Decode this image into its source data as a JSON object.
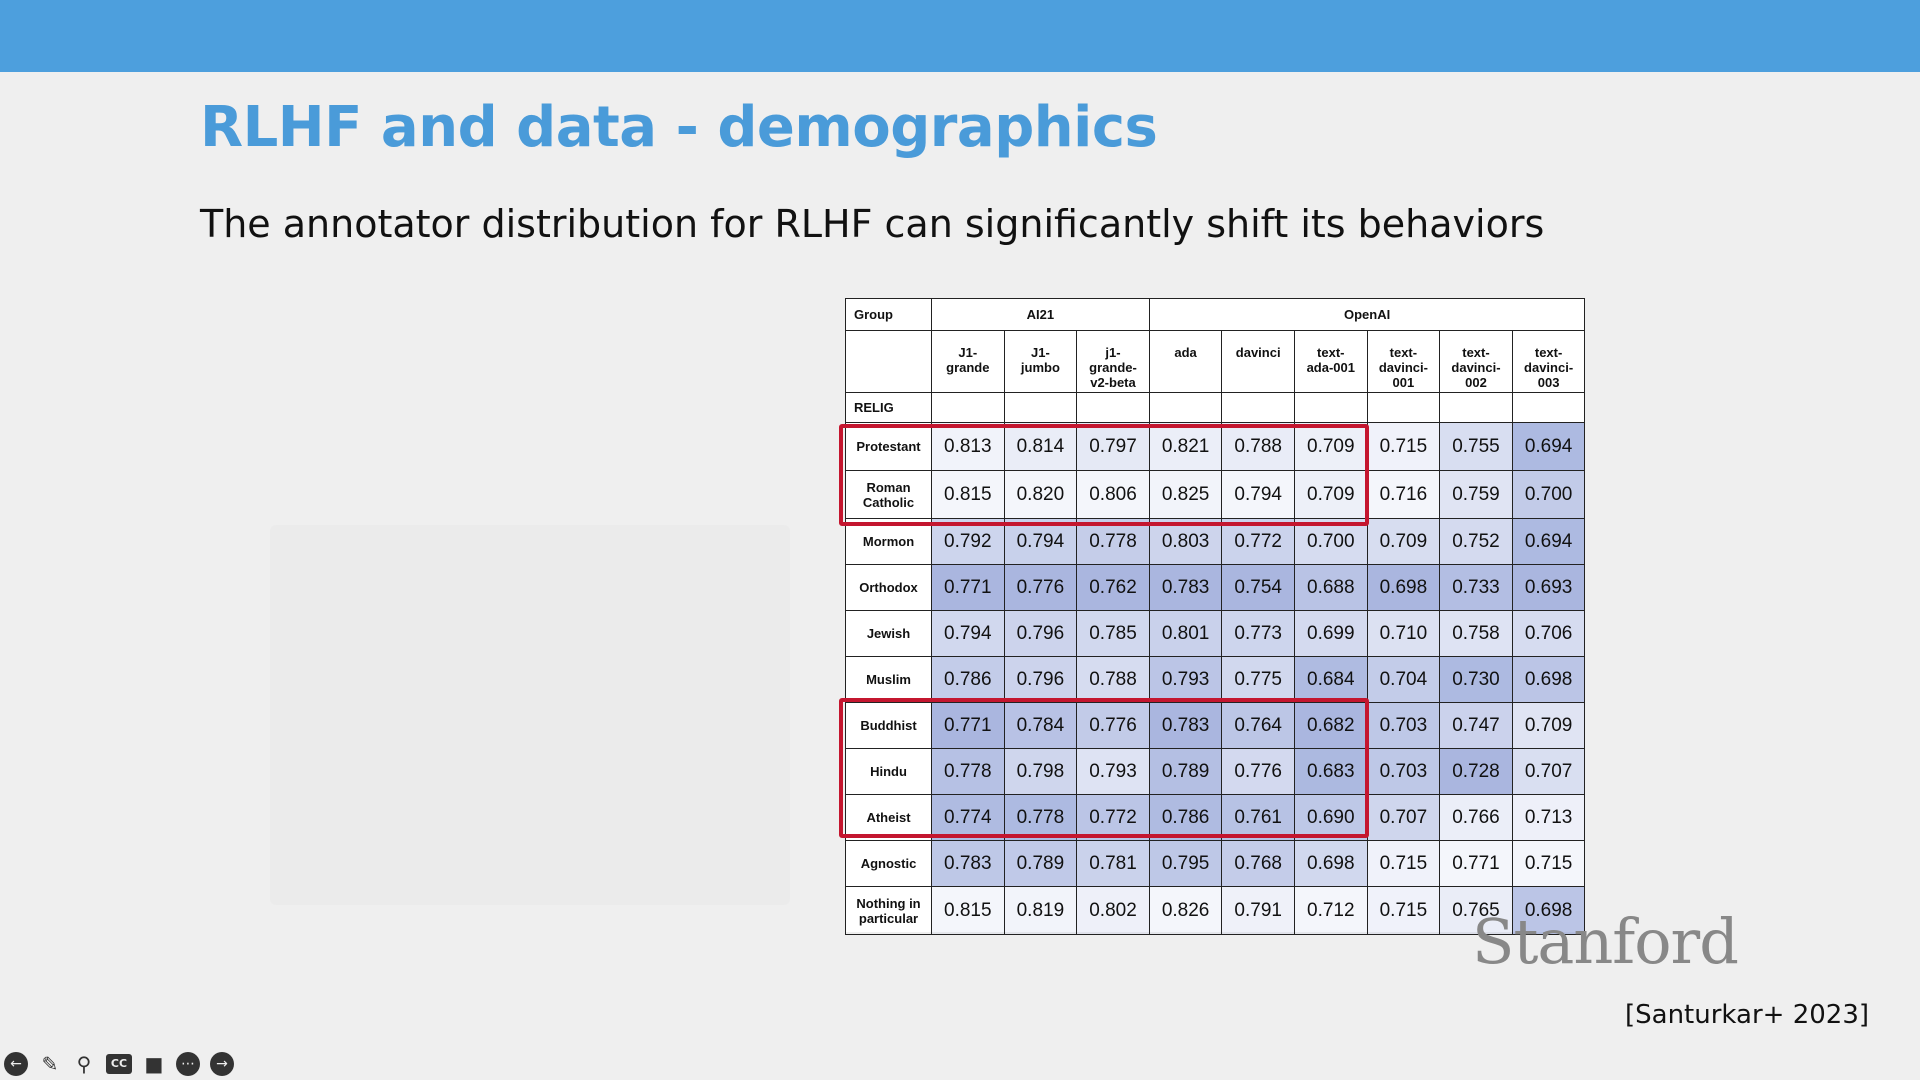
{
  "slide": {
    "title": "RLHF and data - demographics",
    "subtitle": "The annotator distribution for RLHF can significantly shift its behaviors",
    "logo_text": "Stanford",
    "citation": "[Santurkar+ 2023]"
  },
  "table": {
    "group_label": "Group",
    "section_label": "RELIG",
    "orgs": [
      {
        "name": "AI21",
        "span": 3
      },
      {
        "name": "OpenAI",
        "span": 6
      }
    ],
    "models": [
      [
        "J1-",
        "grande"
      ],
      [
        "J1-",
        "jumbo"
      ],
      [
        "j1-",
        "grande-",
        "v2-beta"
      ],
      [
        "ada"
      ],
      [
        "davinci"
      ],
      [
        "text-",
        "ada-001"
      ],
      [
        "text-",
        "davinci-",
        "001"
      ],
      [
        "text-",
        "davinci-",
        "002"
      ],
      [
        "text-",
        "davinci-",
        "003"
      ]
    ],
    "rows": [
      {
        "label": [
          "Protestant"
        ],
        "values": [
          "0.813",
          "0.814",
          "0.797",
          "0.821",
          "0.788",
          "0.709",
          "0.715",
          "0.755",
          "0.694"
        ]
      },
      {
        "label": [
          "Roman",
          "Catholic"
        ],
        "values": [
          "0.815",
          "0.820",
          "0.806",
          "0.825",
          "0.794",
          "0.709",
          "0.716",
          "0.759",
          "0.700"
        ]
      },
      {
        "label": [
          "Mormon"
        ],
        "values": [
          "0.792",
          "0.794",
          "0.778",
          "0.803",
          "0.772",
          "0.700",
          "0.709",
          "0.752",
          "0.694"
        ]
      },
      {
        "label": [
          "Orthodox"
        ],
        "values": [
          "0.771",
          "0.776",
          "0.762",
          "0.783",
          "0.754",
          "0.688",
          "0.698",
          "0.733",
          "0.693"
        ]
      },
      {
        "label": [
          "Jewish"
        ],
        "values": [
          "0.794",
          "0.796",
          "0.785",
          "0.801",
          "0.773",
          "0.699",
          "0.710",
          "0.758",
          "0.706"
        ]
      },
      {
        "label": [
          "Muslim"
        ],
        "values": [
          "0.786",
          "0.796",
          "0.788",
          "0.793",
          "0.775",
          "0.684",
          "0.704",
          "0.730",
          "0.698"
        ]
      },
      {
        "label": [
          "Buddhist"
        ],
        "values": [
          "0.771",
          "0.784",
          "0.776",
          "0.783",
          "0.764",
          "0.682",
          "0.703",
          "0.747",
          "0.709"
        ]
      },
      {
        "label": [
          "Hindu"
        ],
        "values": [
          "0.778",
          "0.798",
          "0.793",
          "0.789",
          "0.776",
          "0.683",
          "0.703",
          "0.728",
          "0.707"
        ]
      },
      {
        "label": [
          "Atheist"
        ],
        "values": [
          "0.774",
          "0.778",
          "0.772",
          "0.786",
          "0.761",
          "0.690",
          "0.707",
          "0.766",
          "0.713"
        ]
      },
      {
        "label": [
          "Agnostic"
        ],
        "values": [
          "0.783",
          "0.789",
          "0.781",
          "0.795",
          "0.768",
          "0.698",
          "0.715",
          "0.771",
          "0.715"
        ]
      },
      {
        "label": [
          "Nothing in",
          "particular"
        ],
        "values": [
          "0.815",
          "0.819",
          "0.802",
          "0.826",
          "0.791",
          "0.712",
          "0.715",
          "0.765",
          "0.698"
        ]
      }
    ]
  },
  "colors": {
    "accent_bar": "#4d9fdd",
    "title": "#4a9bd9",
    "highlight_box": "#c4162f",
    "cell_shade": "#8c9fd6"
  },
  "controls": [
    "back-icon",
    "pen-icon",
    "zoom-icon",
    "captions-icon",
    "camera-icon",
    "more-icon",
    "forward-icon"
  ]
}
